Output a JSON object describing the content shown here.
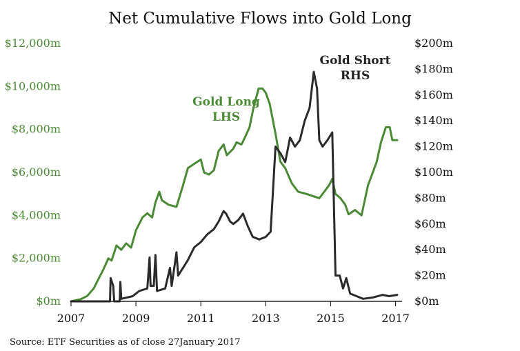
{
  "chart_data": {
    "type": "line",
    "title": "Net Cumulative Flows into Gold Long",
    "source": "Source: ETF Securities as of close 27January 2017",
    "x_axis": {
      "range": [
        2007,
        2017.2
      ],
      "ticks": [
        2007,
        2009,
        2011,
        2013,
        2015,
        2017
      ],
      "tick_labels": [
        "2007",
        "2009",
        "2011",
        "2013",
        "2015",
        "2017"
      ]
    },
    "y_left": {
      "range": [
        0,
        12000
      ],
      "ticks": [
        0,
        2000,
        4000,
        6000,
        8000,
        10000,
        12000
      ],
      "tick_labels": [
        "$0m",
        "$2,000m",
        "$4,000m",
        "$6,000m",
        "$8,000m",
        "$10,000m",
        "$12,000m"
      ],
      "color": "#4a8a34"
    },
    "y_right": {
      "range": [
        0,
        200
      ],
      "ticks": [
        0,
        20,
        40,
        60,
        80,
        100,
        120,
        140,
        160,
        180,
        200
      ],
      "tick_labels": [
        "$0m",
        "$20m",
        "$40m",
        "$60m",
        "$80m",
        "$100m",
        "$120m",
        "$140m",
        "$160m",
        "$180m",
        "$200m"
      ],
      "color": "#111111"
    },
    "grid": false,
    "series": [
      {
        "name": "Gold Long",
        "label_lines": [
          "Gold Long",
          "LHS"
        ],
        "axis": "left",
        "color": "#4a8a34",
        "points": [
          [
            2007.0,
            0
          ],
          [
            2007.3,
            100
          ],
          [
            2007.5,
            250
          ],
          [
            2007.7,
            600
          ],
          [
            2007.8,
            900
          ],
          [
            2008.0,
            1500
          ],
          [
            2008.15,
            2000
          ],
          [
            2008.25,
            1900
          ],
          [
            2008.4,
            2600
          ],
          [
            2008.55,
            2400
          ],
          [
            2008.7,
            2700
          ],
          [
            2008.85,
            2500
          ],
          [
            2009.0,
            3300
          ],
          [
            2009.2,
            3900
          ],
          [
            2009.35,
            4100
          ],
          [
            2009.5,
            3900
          ],
          [
            2009.6,
            4600
          ],
          [
            2009.72,
            5100
          ],
          [
            2009.8,
            4700
          ],
          [
            2010.0,
            4500
          ],
          [
            2010.25,
            4400
          ],
          [
            2010.45,
            5400
          ],
          [
            2010.6,
            6200
          ],
          [
            2010.8,
            6400
          ],
          [
            2011.0,
            6600
          ],
          [
            2011.1,
            6000
          ],
          [
            2011.25,
            5900
          ],
          [
            2011.4,
            6100
          ],
          [
            2011.55,
            7000
          ],
          [
            2011.7,
            7300
          ],
          [
            2011.8,
            6800
          ],
          [
            2012.0,
            7100
          ],
          [
            2012.1,
            7400
          ],
          [
            2012.25,
            7300
          ],
          [
            2012.35,
            7600
          ],
          [
            2012.5,
            8100
          ],
          [
            2012.62,
            9000
          ],
          [
            2012.78,
            9900
          ],
          [
            2012.9,
            9900
          ],
          [
            2013.0,
            9700
          ],
          [
            2013.12,
            9200
          ],
          [
            2013.3,
            7800
          ],
          [
            2013.45,
            6500
          ],
          [
            2013.6,
            6200
          ],
          [
            2013.8,
            5500
          ],
          [
            2014.0,
            5100
          ],
          [
            2014.25,
            5000
          ],
          [
            2014.45,
            4900
          ],
          [
            2014.65,
            4800
          ],
          [
            2014.8,
            5100
          ],
          [
            2014.95,
            5400
          ],
          [
            2015.05,
            5700
          ],
          [
            2015.15,
            5000
          ],
          [
            2015.3,
            4800
          ],
          [
            2015.45,
            4500
          ],
          [
            2015.55,
            4050
          ],
          [
            2015.75,
            4250
          ],
          [
            2015.95,
            4000
          ],
          [
            2016.05,
            4700
          ],
          [
            2016.15,
            5400
          ],
          [
            2016.3,
            6000
          ],
          [
            2016.42,
            6500
          ],
          [
            2016.55,
            7400
          ],
          [
            2016.7,
            8100
          ],
          [
            2016.82,
            8100
          ],
          [
            2016.9,
            7500
          ],
          [
            2017.05,
            7500
          ]
        ]
      },
      {
        "name": "Gold Short",
        "label_lines": [
          "Gold Short",
          "RHS"
        ],
        "axis": "right",
        "color": "#2a2a2a",
        "points": [
          [
            2007.0,
            0
          ],
          [
            2008.2,
            0
          ],
          [
            2008.22,
            18
          ],
          [
            2008.3,
            12
          ],
          [
            2008.33,
            0
          ],
          [
            2008.5,
            0
          ],
          [
            2008.52,
            15
          ],
          [
            2008.55,
            2
          ],
          [
            2008.9,
            4
          ],
          [
            2009.1,
            8
          ],
          [
            2009.35,
            10
          ],
          [
            2009.42,
            34
          ],
          [
            2009.45,
            12
          ],
          [
            2009.55,
            12
          ],
          [
            2009.6,
            36
          ],
          [
            2009.65,
            8
          ],
          [
            2009.9,
            10
          ],
          [
            2010.05,
            26
          ],
          [
            2010.1,
            12
          ],
          [
            2010.25,
            38
          ],
          [
            2010.3,
            20
          ],
          [
            2010.45,
            26
          ],
          [
            2010.6,
            32
          ],
          [
            2010.8,
            42
          ],
          [
            2011.0,
            46
          ],
          [
            2011.2,
            52
          ],
          [
            2011.4,
            56
          ],
          [
            2011.55,
            62
          ],
          [
            2011.7,
            70
          ],
          [
            2011.78,
            68
          ],
          [
            2011.9,
            62
          ],
          [
            2012.0,
            60
          ],
          [
            2012.15,
            63
          ],
          [
            2012.3,
            68
          ],
          [
            2012.45,
            58
          ],
          [
            2012.6,
            50
          ],
          [
            2012.8,
            48
          ],
          [
            2013.0,
            50
          ],
          [
            2013.15,
            54
          ],
          [
            2013.3,
            120
          ],
          [
            2013.45,
            115
          ],
          [
            2013.6,
            108
          ],
          [
            2013.75,
            127
          ],
          [
            2013.9,
            120
          ],
          [
            2014.05,
            125
          ],
          [
            2014.2,
            140
          ],
          [
            2014.35,
            150
          ],
          [
            2014.48,
            178
          ],
          [
            2014.58,
            165
          ],
          [
            2014.65,
            125
          ],
          [
            2014.75,
            120
          ],
          [
            2014.9,
            125
          ],
          [
            2015.05,
            131
          ],
          [
            2015.15,
            20
          ],
          [
            2015.28,
            20
          ],
          [
            2015.38,
            10
          ],
          [
            2015.48,
            18
          ],
          [
            2015.6,
            6
          ],
          [
            2015.8,
            4
          ],
          [
            2016.0,
            2
          ],
          [
            2016.3,
            3
          ],
          [
            2016.6,
            5
          ],
          [
            2016.8,
            4
          ],
          [
            2017.05,
            5
          ]
        ]
      }
    ]
  }
}
